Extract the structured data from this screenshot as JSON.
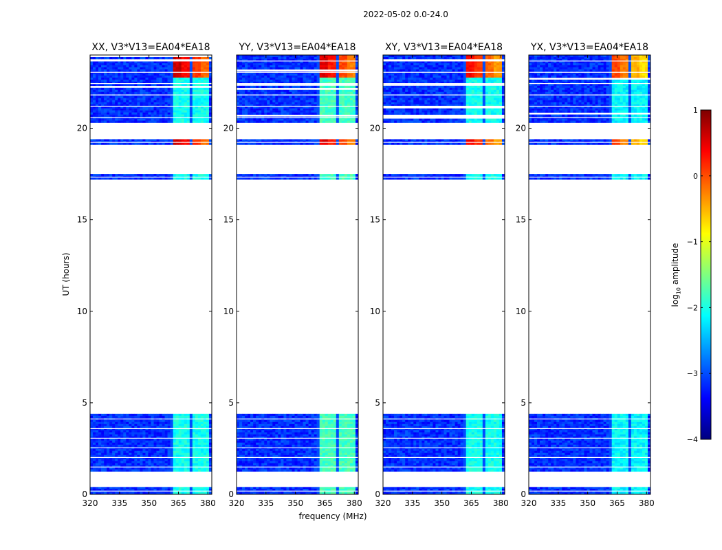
{
  "chart_data": {
    "type": "heatmap",
    "suptitle": "2022-05-02 0.0-24.0",
    "xlabel": "frequency (MHz)",
    "ylabel": "UT (hours)",
    "xlim": [
      320,
      382
    ],
    "ylim": [
      0,
      24
    ],
    "xticks": [
      "320",
      "335",
      "350",
      "365",
      "380"
    ],
    "yticks": [
      "0",
      "5",
      "10",
      "15",
      "20"
    ],
    "panels": [
      {
        "title": "XX, V3*V13=EA04*EA18",
        "rfi_level": 0.35,
        "peak_level": 0.9
      },
      {
        "title": "YY, V3*V13=EA04*EA18",
        "rfi_level": 0.4,
        "peak_level": 0.88
      },
      {
        "title": "XY, V3*V13=EA04*EA18",
        "rfi_level": 0.35,
        "peak_level": 0.85
      },
      {
        "title": "YX, V3*V13=EA04*EA18",
        "rfi_level": 0.33,
        "peak_level": 0.78
      }
    ],
    "data_time_ranges_hours": [
      [
        0.0,
        0.4
      ],
      [
        1.25,
        4.4
      ],
      [
        17.2,
        17.5
      ],
      [
        19.1,
        19.4
      ],
      [
        20.3,
        24.0
      ]
    ],
    "rfi_band_mhz": [
      361,
      381
    ],
    "colorbar": {
      "label": "log10 amplitude",
      "min": -4,
      "max": 1,
      "ticks": [
        "1",
        "0",
        "−1",
        "−2",
        "−3",
        "−4"
      ],
      "colormap": "jet"
    }
  }
}
